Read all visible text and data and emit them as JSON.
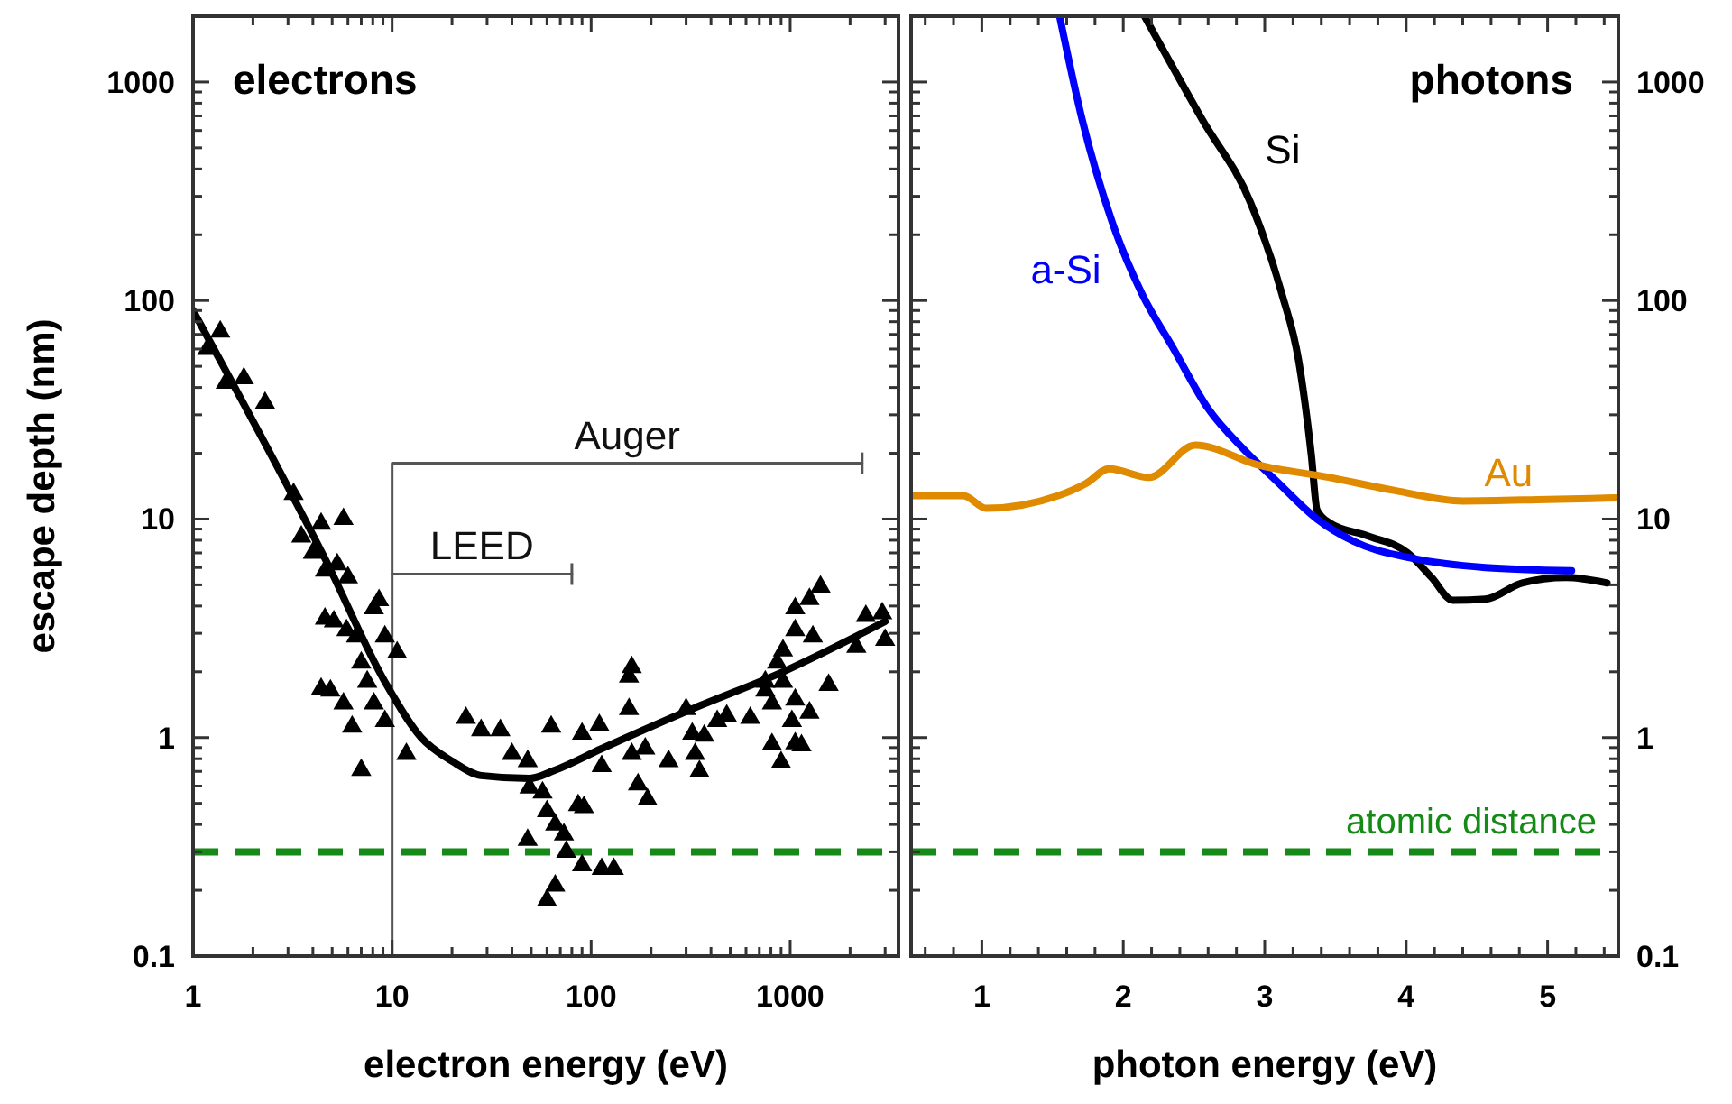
{
  "chart_data": [
    {
      "type": "line",
      "title": "electrons",
      "xlabel": "electron energy (eV)",
      "ylabel": "escape depth (nm)",
      "log": "xy",
      "legend": false,
      "xlim": [
        1,
        3500
      ],
      "xticks": [
        1,
        {
          "value": 2,
          "label": null
        },
        {
          "value": 3,
          "label": null
        },
        {
          "value": 4,
          "label": null
        },
        {
          "value": 5,
          "label": null
        },
        {
          "value": 6,
          "label": null
        },
        {
          "value": 7,
          "label": null
        },
        {
          "value": 8,
          "label": null
        },
        {
          "value": 9,
          "label": null
        },
        10,
        {
          "value": 20,
          "label": null
        },
        {
          "value": 30,
          "label": null
        },
        {
          "value": 40,
          "label": null
        },
        {
          "value": 50,
          "label": null
        },
        {
          "value": 60,
          "label": null
        },
        {
          "value": 70,
          "label": null
        },
        {
          "value": 80,
          "label": null
        },
        {
          "value": 90,
          "label": null
        },
        100,
        {
          "value": 200,
          "label": null
        },
        {
          "value": 300,
          "label": null
        },
        {
          "value": 400,
          "label": null
        },
        {
          "value": 500,
          "label": null
        },
        {
          "value": 600,
          "label": null
        },
        {
          "value": 700,
          "label": null
        },
        {
          "value": 800,
          "label": null
        },
        {
          "value": 900,
          "label": null
        },
        1000,
        {
          "value": 2000,
          "label": null
        },
        {
          "value": 3000,
          "label": null
        }
      ],
      "ylim": [
        0.1,
        2000
      ],
      "yticks": [
        0.1,
        {
          "value": 0.2,
          "label": null
        },
        {
          "value": 0.3,
          "label": null
        },
        {
          "value": 0.4,
          "label": null
        },
        {
          "value": 0.5,
          "label": null
        },
        {
          "value": 0.6,
          "label": null
        },
        {
          "value": 0.7,
          "label": null
        },
        {
          "value": 0.8,
          "label": null
        },
        {
          "value": 0.9,
          "label": null
        },
        1,
        {
          "value": 2,
          "label": null
        },
        {
          "value": 3,
          "label": null
        },
        {
          "value": 4,
          "label": null
        },
        {
          "value": 5,
          "label": null
        },
        {
          "value": 6,
          "label": null
        },
        {
          "value": 7,
          "label": null
        },
        {
          "value": 8,
          "label": null
        },
        {
          "value": 9,
          "label": null
        },
        10,
        {
          "value": 20,
          "label": null
        },
        {
          "value": 30,
          "label": null
        },
        {
          "value": 40,
          "label": null
        },
        {
          "value": 50,
          "label": null
        },
        {
          "value": 60,
          "label": null
        },
        {
          "value": 70,
          "label": null
        },
        {
          "value": 80,
          "label": null
        },
        {
          "value": 90,
          "label": null
        },
        100,
        {
          "value": 200,
          "label": null
        },
        {
          "value": 300,
          "label": null
        },
        {
          "value": 400,
          "label": null
        },
        {
          "value": 500,
          "label": null
        },
        {
          "value": 600,
          "label": null
        },
        {
          "value": 700,
          "label": null
        },
        {
          "value": 800,
          "label": null
        },
        {
          "value": 900,
          "label": null
        },
        1000
      ],
      "ref_lines": [
        {
          "axis": "y",
          "value": 0.3,
          "color": "#168a16",
          "line_style": "dashed"
        }
      ],
      "series": [
        {
          "name": "Auger",
          "color": "#555555",
          "x": [
            10,
            10,
            2300
          ],
          "values": [
            0.1,
            18,
            18
          ]
        },
        {
          "name": "LEED",
          "color": "#555555",
          "x": [
            10,
            80
          ],
          "values": [
            5.6,
            5.6
          ]
        },
        {
          "type": "scatter",
          "marker": "triangle",
          "color": "#000000",
          "x": [
            1.18,
            1.37,
            1.46,
            1.8,
            2.3,
            3.2,
            3.5,
            4.4,
            5.7,
            4.0,
            4.6,
            5.3,
            6.0,
            8.6,
            4.6,
            5.1,
            5.9,
            6.6,
            8.1,
            9.2,
            10.6,
            7.0,
            7.5,
            4.4,
            4.9,
            5.7,
            6.3,
            8.1,
            9.2,
            7.0,
            11.8,
            23.5,
            28,
            35,
            40,
            48,
            63,
            49,
            57,
            60,
            66,
            73,
            48,
            75,
            90,
            113,
            130,
            66,
            60,
            86,
            92,
            90,
            110,
            113,
            160,
            155,
            155,
            160,
            187,
            172,
            192,
            245,
            300,
            322,
            333,
            350,
            370,
            430,
            480,
            630,
            810,
            750,
            860,
            810,
            900,
            1060,
            1140,
            1020,
            1060,
            1250,
            1560,
            1060,
            1250,
            1420,
            1060,
            1300,
            920,
            2150,
            2400,
            2900,
            3000,
            750,
            920
          ],
          "values": [
            60,
            72,
            42,
            44,
            34,
            13,
            8.3,
            9.5,
            10,
            7.0,
            5.8,
            6.2,
            5.4,
            4.25,
            3.5,
            3.4,
            3.1,
            2.9,
            3.9,
            2.9,
            2.45,
            2.2,
            1.8,
            1.67,
            1.64,
            1.43,
            1.12,
            1.43,
            1.19,
            0.71,
            0.84,
            1.23,
            1.08,
            1.08,
            0.84,
            0.78,
            1.12,
            0.59,
            0.56,
            0.46,
            0.4,
            0.36,
            0.34,
            0.3,
            0.26,
            0.25,
            0.25,
            0.21,
            0.18,
            0.49,
            0.48,
            1.04,
            1.14,
            0.74,
            2.1,
            1.9,
            1.35,
            0.84,
            0.89,
            0.61,
            0.52,
            0.78,
            1.35,
            1.04,
            0.84,
            0.7,
            1.02,
            1.19,
            1.26,
            1.23,
            1.43,
            1.8,
            2.2,
            0.93,
            0.77,
            0.94,
            0.92,
            1.19,
            1.49,
            1.3,
            1.74,
            3.9,
            4.3,
            4.9,
            3.1,
            2.9,
            1.8,
            2.6,
            3.6,
            3.7,
            2.8,
            1.64,
            2.5
          ]
        },
        {
          "color": "#000000",
          "x": [
            1,
            3,
            4.6,
            9.2,
            14,
            20,
            28,
            49,
            66,
            113,
            320,
            920,
            3000
          ],
          "values": [
            90,
            14,
            6.6,
            1.8,
            1.0,
            0.78,
            0.67,
            0.65,
            0.71,
            0.89,
            1.35,
            2.0,
            3.4
          ]
        }
      ]
    },
    {
      "type": "line",
      "title": "photons",
      "xlabel": "photon energy (eV)",
      "log": "y2",
      "legend": false,
      "xlim": [
        0.5,
        5.5
      ],
      "xticks": [
        {
          "value": 0.6,
          "label": null
        },
        {
          "value": 0.8,
          "label": null
        },
        1,
        {
          "value": 1.2,
          "label": null
        },
        {
          "value": 1.4,
          "label": null
        },
        {
          "value": 1.6,
          "label": null
        },
        {
          "value": 1.8,
          "label": null
        },
        2,
        {
          "value": 2.2,
          "label": null
        },
        {
          "value": 2.4,
          "label": null
        },
        {
          "value": 2.6,
          "label": null
        },
        {
          "value": 2.8,
          "label": null
        },
        3,
        {
          "value": 3.2,
          "label": null
        },
        {
          "value": 3.4,
          "label": null
        },
        {
          "value": 3.6,
          "label": null
        },
        {
          "value": 3.8,
          "label": null
        },
        4,
        {
          "value": 4.2,
          "label": null
        },
        {
          "value": 4.4,
          "label": null
        },
        {
          "value": 4.6,
          "label": null
        },
        {
          "value": 4.8,
          "label": null
        },
        5,
        {
          "value": 5.2,
          "label": null
        },
        {
          "value": 5.4,
          "label": null
        }
      ],
      "y2lim": [
        0.1,
        2000
      ],
      "y2ticks": [
        0.1,
        {
          "value": 0.2,
          "label": null
        },
        {
          "value": 0.3,
          "label": null
        },
        {
          "value": 0.4,
          "label": null
        },
        {
          "value": 0.5,
          "label": null
        },
        {
          "value": 0.6,
          "label": null
        },
        {
          "value": 0.7,
          "label": null
        },
        {
          "value": 0.8,
          "label": null
        },
        {
          "value": 0.9,
          "label": null
        },
        1,
        {
          "value": 2,
          "label": null
        },
        {
          "value": 3,
          "label": null
        },
        {
          "value": 4,
          "label": null
        },
        {
          "value": 5,
          "label": null
        },
        {
          "value": 6,
          "label": null
        },
        {
          "value": 7,
          "label": null
        },
        {
          "value": 8,
          "label": null
        },
        {
          "value": 9,
          "label": null
        },
        10,
        {
          "value": 20,
          "label": null
        },
        {
          "value": 30,
          "label": null
        },
        {
          "value": 40,
          "label": null
        },
        {
          "value": 50,
          "label": null
        },
        {
          "value": 60,
          "label": null
        },
        {
          "value": 70,
          "label": null
        },
        {
          "value": 80,
          "label": null
        },
        {
          "value": 90,
          "label": null
        },
        100,
        {
          "value": 200,
          "label": null
        },
        {
          "value": 300,
          "label": null
        },
        {
          "value": 400,
          "label": null
        },
        {
          "value": 500,
          "label": null
        },
        {
          "value": 600,
          "label": null
        },
        {
          "value": 700,
          "label": null
        },
        {
          "value": 800,
          "label": null
        },
        {
          "value": 900,
          "label": null
        },
        1000
      ],
      "ref_lines": [
        {
          "axis": "y2",
          "value": 0.3,
          "label": "atomic distance",
          "color": "#168a16",
          "line_style": "dashed"
        }
      ],
      "series": [
        {
          "name": "Si",
          "axis": "y2",
          "color": "#000000",
          "x": [
            2.15,
            2.56,
            2.9,
            3.12,
            3.24,
            3.33,
            3.37,
            3.46,
            3.72,
            4.01,
            4.18,
            4.33,
            4.56,
            4.82,
            5.13,
            5.42
          ],
          "values": [
            2000,
            670,
            280,
            108,
            53,
            19.5,
            11,
            9.6,
            8.4,
            7.0,
            5.4,
            4.25,
            4.3,
            5.1,
            5.4,
            5.1
          ]
        },
        {
          "name": "a-Si",
          "axis": "y2",
          "color": "#0000ff",
          "x": [
            1.55,
            1.71,
            1.92,
            2.13,
            2.35,
            2.6,
            2.86,
            3.08,
            3.37,
            3.63,
            4.05,
            4.56,
            5.17
          ],
          "values": [
            2000,
            670,
            230,
            108,
            61,
            32,
            20.6,
            15,
            10,
            7.9,
            6.6,
            6.0,
            5.8
          ]
        },
        {
          "name": "Au",
          "axis": "y2",
          "color": "#e08a00",
          "x": [
            0.5,
            0.87,
            1.03,
            1.54,
            1.74,
            1.9,
            2.18,
            2.51,
            2.95,
            3.46,
            3.92,
            4.4,
            5.0,
            5.49
          ],
          "values": [
            12.8,
            12.8,
            11.2,
            12.8,
            14.6,
            17,
            15.5,
            21.8,
            17.7,
            15.5,
            13.5,
            12.1,
            12.3,
            12.5
          ]
        }
      ]
    }
  ]
}
